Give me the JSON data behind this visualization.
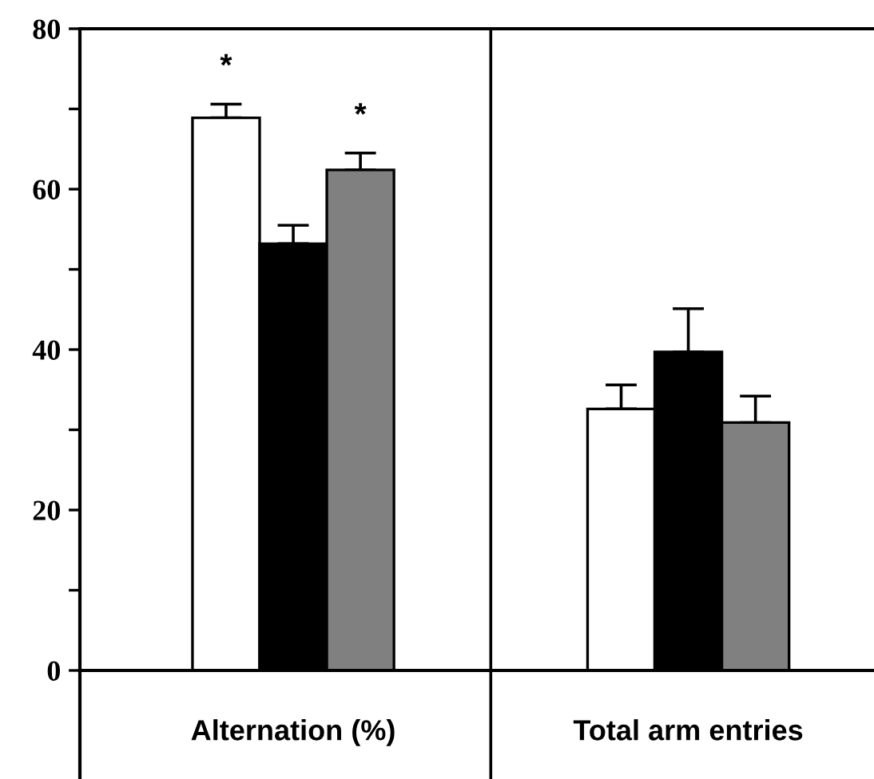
{
  "chart_data": {
    "type": "bar",
    "categories": [
      "Alternation (%)",
      "Total arm entries"
    ],
    "series": [
      {
        "color": "#ffffff",
        "values": [
          68.9,
          32.6
        ],
        "errors": [
          [
            68.9,
            70.6
          ],
          [
            32.6,
            35.6
          ]
        ],
        "value_labels": [
          "*",
          null
        ]
      },
      {
        "color": "#000000",
        "values": [
          53.2,
          39.7
        ],
        "errors": [
          [
            53.2,
            55.5
          ],
          [
            39.7,
            45.1
          ]
        ]
      },
      {
        "color": "#808080",
        "values": [
          62.4,
          30.9
        ],
        "errors": [
          [
            62.4,
            64.5
          ],
          [
            30.9,
            34.2
          ]
        ],
        "value_labels": [
          "*",
          null
        ]
      }
    ],
    "ylim": [
      0,
      80
    ],
    "yticks": [
      0,
      {
        "value": 10,
        "label": null
      },
      20,
      {
        "value": 30,
        "label": null
      },
      40,
      {
        "value": 50,
        "label": null
      },
      60,
      {
        "value": 70,
        "label": null
      },
      80
    ],
    "grid": false
  }
}
